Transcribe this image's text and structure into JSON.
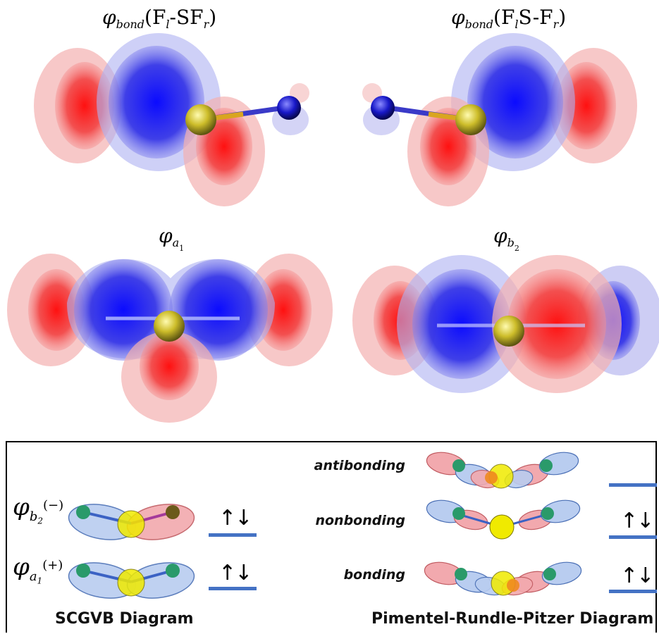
{
  "panels": {
    "top_left_title": {
      "phi": "φ",
      "sub": "bond",
      "text": "(F",
      "l": "l",
      "mid": "-SF",
      "r": "r",
      "close": ")"
    },
    "top_right_title": {
      "phi": "φ",
      "sub": "bond",
      "text": "(F",
      "l": "l",
      "mid": "S-F",
      "r": "r",
      "close": ")"
    },
    "mid_left_title": {
      "phi": "φ",
      "sub": "a",
      "subsub": "1"
    },
    "mid_right_title": {
      "phi": "φ",
      "sub": "b",
      "subsub": "2"
    }
  },
  "scgvb": {
    "caption": "SCGVB Diagram",
    "rows": [
      {
        "phi": "φ",
        "sub": "b",
        "subsub": "2",
        "sign": "(−)",
        "spins": "↑↓"
      },
      {
        "phi": "φ",
        "sub": "a",
        "subsub": "1",
        "sign": "(+)",
        "spins": "↑↓"
      }
    ]
  },
  "prp": {
    "caption": "Pimentel-Rundle-Pitzer Diagram",
    "levels": [
      {
        "label": "antibonding",
        "spins": ""
      },
      {
        "label": "nonbonding",
        "spins": "↑↓"
      },
      {
        "label": "bonding",
        "spins": "↑↓"
      }
    ]
  },
  "colors": {
    "red_lobe": "#e8292b",
    "blue_lobe": "#1f1fe0",
    "sulfur": "#d8cf2c",
    "level_bar": "#4472c4",
    "fluorine": "#2a9a6a"
  }
}
